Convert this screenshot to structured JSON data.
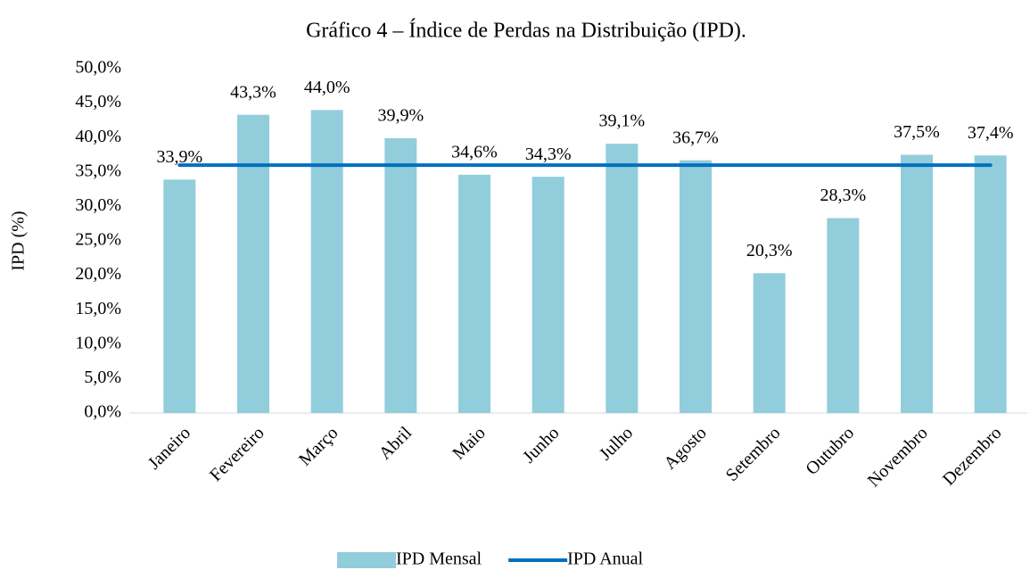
{
  "chart_data": {
    "type": "bar",
    "title": "Gráfico 4 – Índice de Perdas na Distribuição (IPD).",
    "y_label": "IPD (%)",
    "categories": [
      "Janeiro",
      "Fevereiro",
      "Março",
      "Abril",
      "Maio",
      "Junho",
      "Julho",
      "Agosto",
      "Setembro",
      "Outubro",
      "Novembro",
      "Dezembro"
    ],
    "series": [
      {
        "name": "IPD Mensal",
        "type": "bar",
        "color": "#92cddc",
        "values": [
          33.9,
          43.3,
          44.0,
          39.9,
          34.6,
          34.3,
          39.1,
          36.7,
          20.3,
          28.3,
          37.5,
          37.4
        ],
        "value_labels": [
          "33,9%",
          "43,3%",
          "44,0%",
          "39,9%",
          "34,6%",
          "34,3%",
          "39,1%",
          "36,7%",
          "20,3%",
          "28,3%",
          "37,5%",
          "37,4%"
        ]
      },
      {
        "name": "IPD Anual",
        "type": "line",
        "color": "#0070c0",
        "values": [
          36.0,
          36.0,
          36.0,
          36.0,
          36.0,
          36.0,
          36.0,
          36.0,
          36.0,
          36.0,
          36.0,
          36.0
        ]
      }
    ],
    "ylim": [
      0,
      50
    ],
    "yticks": [
      {
        "value": 0,
        "label": "0,0%"
      },
      {
        "value": 5,
        "label": "5,0%"
      },
      {
        "value": 10,
        "label": "10,0%"
      },
      {
        "value": 15,
        "label": "15,0%"
      },
      {
        "value": 20,
        "label": "20,0%"
      },
      {
        "value": 25,
        "label": "25,0%"
      },
      {
        "value": 30,
        "label": "30,0%"
      },
      {
        "value": 35,
        "label": "35,0%"
      },
      {
        "value": 40,
        "label": "40,0%"
      },
      {
        "value": 45,
        "label": "45,0%"
      },
      {
        "value": 50,
        "label": "50,0%"
      }
    ],
    "grid": false,
    "legend": "bottom"
  }
}
